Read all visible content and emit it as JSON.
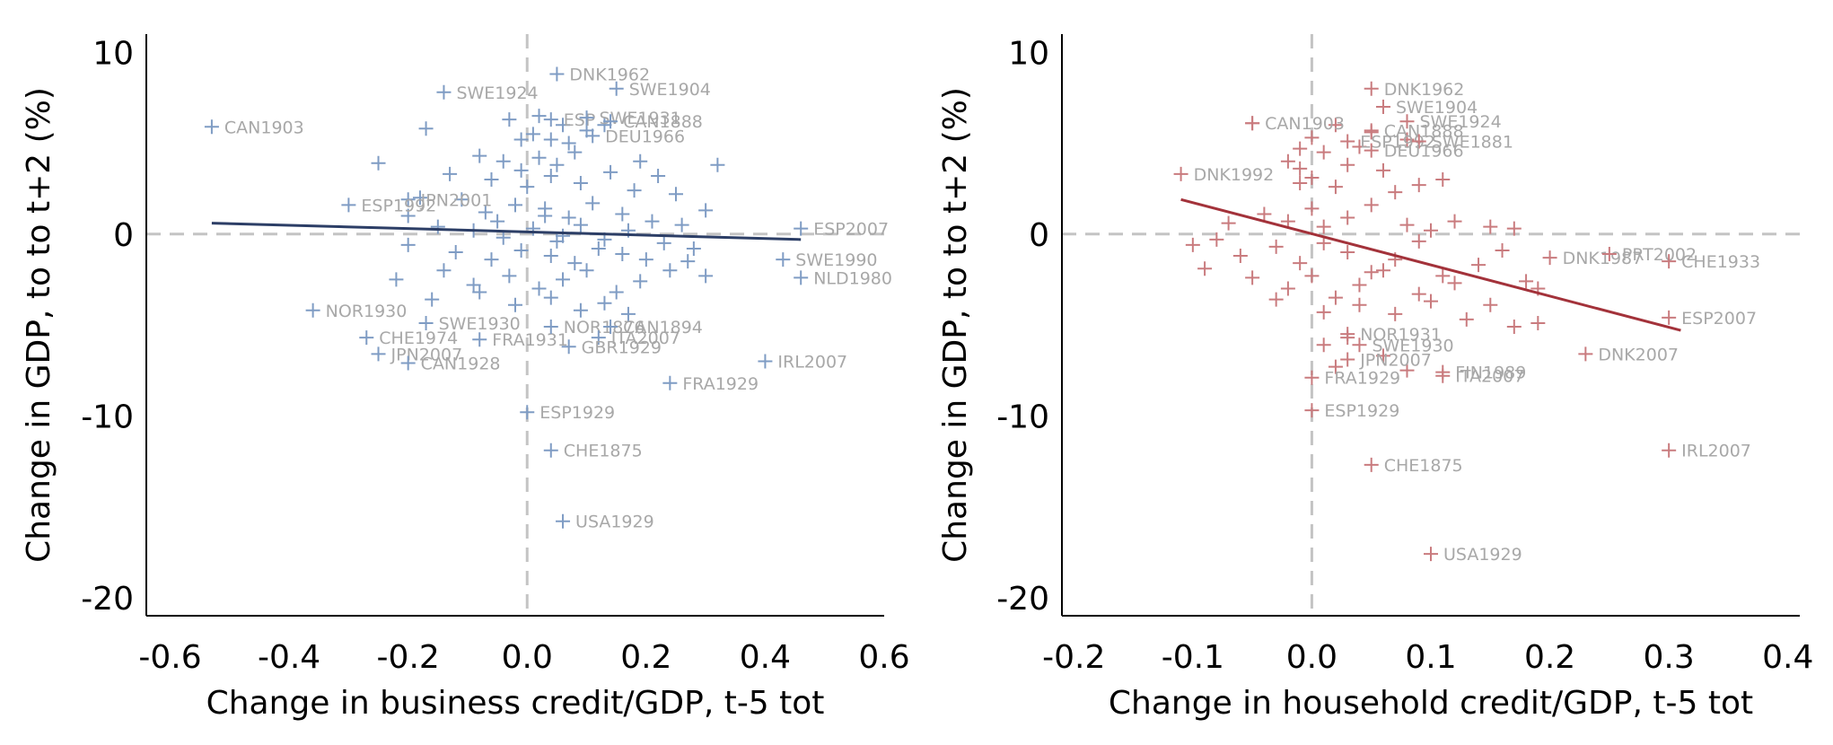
{
  "chart_data": [
    {
      "type": "scatter",
      "xlabel": "Change in business credit/GDP,  t-5 tot",
      "ylabel": "Change in GDP, to to t+2 (%)",
      "xlim": [
        -0.64,
        0.6
      ],
      "ylim": [
        -21,
        11
      ],
      "xticks": [
        "-0.6",
        "-0.4",
        "-0.2",
        "0.0",
        "0.2",
        "0.4",
        "0.6"
      ],
      "xtick_values": [
        -0.6,
        -0.4,
        -0.2,
        0.0,
        0.2,
        0.4,
        0.6
      ],
      "yticks": [
        "10",
        "0",
        "-10",
        "-20"
      ],
      "ytick_values": [
        10,
        0,
        -10,
        -20
      ],
      "ref_x": 0,
      "ref_y": 0,
      "marker_color": "#7f9cc4",
      "line_color": "#2c3e66",
      "fit_line": {
        "x": [
          -0.53,
          0.46
        ],
        "y": [
          0.6,
          -0.3
        ]
      },
      "points": [
        [
          -0.17,
          5.8
        ],
        [
          -0.03,
          6.3
        ],
        [
          0.02,
          6.5
        ],
        [
          0.06,
          6.0
        ],
        [
          0.1,
          5.7
        ],
        [
          0.13,
          6.0
        ],
        [
          -0.01,
          5.2
        ],
        [
          0.01,
          5.5
        ],
        [
          0.04,
          5.2
        ],
        [
          0.07,
          5.0
        ],
        [
          -0.08,
          4.3
        ],
        [
          -0.04,
          4.0
        ],
        [
          -0.01,
          3.5
        ],
        [
          0.02,
          4.2
        ],
        [
          0.05,
          3.8
        ],
        [
          0.08,
          4.5
        ],
        [
          -0.13,
          3.3
        ],
        [
          -0.06,
          3.0
        ],
        [
          0.0,
          2.6
        ],
        [
          0.04,
          3.2
        ],
        [
          0.09,
          2.8
        ],
        [
          0.14,
          3.4
        ],
        [
          0.18,
          2.4
        ],
        [
          0.22,
          3.2
        ],
        [
          0.25,
          2.2
        ],
        [
          -0.18,
          2.0
        ],
        [
          -0.11,
          1.9
        ],
        [
          -0.07,
          1.2
        ],
        [
          -0.02,
          1.6
        ],
        [
          0.03,
          1.4
        ],
        [
          0.07,
          0.9
        ],
        [
          0.11,
          1.7
        ],
        [
          0.16,
          1.1
        ],
        [
          0.21,
          0.7
        ],
        [
          0.26,
          0.5
        ],
        [
          0.3,
          1.3
        ],
        [
          -0.15,
          0.4
        ],
        [
          -0.09,
          0.2
        ],
        [
          -0.04,
          -0.2
        ],
        [
          0.01,
          0.3
        ],
        [
          0.05,
          -0.4
        ],
        [
          0.09,
          0.5
        ],
        [
          0.13,
          -0.3
        ],
        [
          0.17,
          0.2
        ],
        [
          0.23,
          -0.5
        ],
        [
          0.28,
          -0.8
        ],
        [
          -0.2,
          -0.6
        ],
        [
          -0.12,
          -1.0
        ],
        [
          -0.06,
          -1.4
        ],
        [
          -0.01,
          -0.9
        ],
        [
          0.04,
          -1.2
        ],
        [
          0.08,
          -1.6
        ],
        [
          0.12,
          -0.8
        ],
        [
          0.16,
          -1.1
        ],
        [
          0.2,
          -1.4
        ],
        [
          0.27,
          -1.5
        ],
        [
          -0.22,
          -2.5
        ],
        [
          -0.14,
          -2.0
        ],
        [
          -0.09,
          -2.8
        ],
        [
          -0.03,
          -2.3
        ],
        [
          0.02,
          -3.0
        ],
        [
          0.06,
          -2.5
        ],
        [
          0.1,
          -2.0
        ],
        [
          0.15,
          -3.2
        ],
        [
          0.19,
          -2.6
        ],
        [
          0.24,
          -2.0
        ],
        [
          -0.16,
          -3.6
        ],
        [
          -0.08,
          -3.2
        ],
        [
          -0.02,
          -3.9
        ],
        [
          0.04,
          -3.5
        ],
        [
          0.09,
          -4.2
        ],
        [
          0.13,
          -3.8
        ],
        [
          0.17,
          -4.4
        ],
        [
          0.3,
          -2.3
        ],
        [
          -0.25,
          3.9
        ],
        [
          -0.2,
          1.0
        ],
        [
          0.32,
          3.8
        ],
        [
          0.03,
          1.0
        ],
        [
          0.06,
          -0.1
        ],
        [
          -0.05,
          0.7
        ],
        [
          0.19,
          4.0
        ]
      ],
      "labeled_points": [
        {
          "x": -0.53,
          "y": 5.9,
          "label": "CAN1903"
        },
        {
          "x": -0.14,
          "y": 7.8,
          "label": "SWE1924"
        },
        {
          "x": 0.05,
          "y": 8.8,
          "label": "DNK1962"
        },
        {
          "x": 0.15,
          "y": 8.0,
          "label": "SWE1904"
        },
        {
          "x": 0.04,
          "y": 6.3,
          "label": "ESP"
        },
        {
          "x": 0.1,
          "y": 6.4,
          "label": "SWE1931"
        },
        {
          "x": 0.14,
          "y": 6.2,
          "label": "CAN1888"
        },
        {
          "x": 0.11,
          "y": 5.4,
          "label": "DEU1966"
        },
        {
          "x": -0.2,
          "y": 1.9,
          "label": "JPN2001"
        },
        {
          "x": -0.3,
          "y": 1.6,
          "label": "ESP1992"
        },
        {
          "x": 0.46,
          "y": 0.3,
          "label": "ESP2007"
        },
        {
          "x": 0.43,
          "y": -1.4,
          "label": "SWE1990"
        },
        {
          "x": 0.46,
          "y": -2.4,
          "label": "NLD1980"
        },
        {
          "x": -0.36,
          "y": -4.2,
          "label": "NOR1930"
        },
        {
          "x": -0.17,
          "y": -4.9,
          "label": "SWE1930"
        },
        {
          "x": -0.27,
          "y": -5.7,
          "label": "CHE1974"
        },
        {
          "x": -0.08,
          "y": -5.8,
          "label": "FRA1931"
        },
        {
          "x": -0.25,
          "y": -6.6,
          "label": "JPN2007"
        },
        {
          "x": -0.2,
          "y": -7.1,
          "label": "CAN1928"
        },
        {
          "x": 0.04,
          "y": -5.1,
          "label": "NOR1876"
        },
        {
          "x": 0.14,
          "y": -5.1,
          "label": "CAN1894"
        },
        {
          "x": 0.12,
          "y": -5.7,
          "label": "ITA2007"
        },
        {
          "x": 0.07,
          "y": -6.2,
          "label": "GBR1929"
        },
        {
          "x": 0.4,
          "y": -7.0,
          "label": "IRL2007"
        },
        {
          "x": 0.24,
          "y": -8.2,
          "label": "FRA1929"
        },
        {
          "x": 0.0,
          "y": -9.8,
          "label": "ESP1929"
        },
        {
          "x": 0.04,
          "y": -11.9,
          "label": "CHE1875"
        },
        {
          "x": 0.06,
          "y": -15.8,
          "label": "USA1929"
        }
      ]
    },
    {
      "type": "scatter",
      "xlabel": "Change in household credit/GDP,  t-5 tot",
      "ylabel": "Change in GDP, to to t+2 (%)",
      "xlim": [
        -0.21,
        0.41
      ],
      "ylim": [
        -21,
        11
      ],
      "xticks": [
        "-0.2",
        "-0.1",
        "0.0",
        "0.1",
        "0.2",
        "0.3",
        "0.4"
      ],
      "xtick_values": [
        -0.2,
        -0.1,
        0.0,
        0.1,
        0.2,
        0.3,
        0.4
      ],
      "yticks": [
        "10",
        "0",
        "-10",
        "-20"
      ],
      "ytick_values": [
        10,
        0,
        -10,
        -20
      ],
      "ref_x": 0,
      "ref_y": 0,
      "marker_color": "#c97b7e",
      "line_color": "#a3323a",
      "fit_line": {
        "x": [
          -0.11,
          0.31
        ],
        "y": [
          1.9,
          -5.3
        ]
      },
      "points": [
        [
          -0.05,
          6.1
        ],
        [
          0.0,
          5.3
        ],
        [
          0.02,
          6.0
        ],
        [
          0.05,
          5.6
        ],
        [
          0.08,
          5.2
        ],
        [
          -0.01,
          4.7
        ],
        [
          0.01,
          4.5
        ],
        [
          0.03,
          3.8
        ],
        [
          0.06,
          3.5
        ],
        [
          0.11,
          3.0
        ],
        [
          -0.01,
          3.6
        ],
        [
          0.0,
          3.1
        ],
        [
          0.02,
          2.6
        ],
        [
          0.07,
          2.3
        ],
        [
          0.09,
          2.7
        ],
        [
          -0.07,
          0.6
        ],
        [
          -0.04,
          1.1
        ],
        [
          -0.02,
          0.7
        ],
        [
          0.0,
          1.4
        ],
        [
          0.01,
          0.4
        ],
        [
          0.03,
          0.9
        ],
        [
          0.05,
          1.6
        ],
        [
          0.08,
          0.5
        ],
        [
          0.1,
          0.2
        ],
        [
          0.12,
          0.7
        ],
        [
          0.15,
          0.4
        ],
        [
          0.17,
          0.3
        ],
        [
          -0.08,
          -0.3
        ],
        [
          -0.06,
          -1.2
        ],
        [
          -0.03,
          -0.7
        ],
        [
          -0.01,
          -1.6
        ],
        [
          0.01,
          -0.5
        ],
        [
          0.03,
          -1.0
        ],
        [
          0.05,
          -2.1
        ],
        [
          0.07,
          -1.4
        ],
        [
          0.09,
          -0.4
        ],
        [
          0.11,
          -2.3
        ],
        [
          0.14,
          -1.7
        ],
        [
          0.16,
          -0.9
        ],
        [
          0.18,
          -2.6
        ],
        [
          -0.09,
          -1.9
        ],
        [
          -0.05,
          -2.4
        ],
        [
          -0.02,
          -3.0
        ],
        [
          0.0,
          -2.3
        ],
        [
          0.02,
          -3.5
        ],
        [
          0.04,
          -2.8
        ],
        [
          0.06,
          -2.0
        ],
        [
          0.09,
          -3.3
        ],
        [
          0.12,
          -2.7
        ],
        [
          0.15,
          -3.9
        ],
        [
          0.19,
          -3.0
        ],
        [
          -0.03,
          -3.6
        ],
        [
          0.01,
          -4.3
        ],
        [
          0.04,
          -3.9
        ],
        [
          0.07,
          -4.4
        ],
        [
          0.1,
          -3.7
        ],
        [
          0.13,
          -4.7
        ],
        [
          0.17,
          -5.1
        ],
        [
          0.01,
          -6.1
        ],
        [
          0.03,
          -5.7
        ],
        [
          0.06,
          -6.7
        ],
        [
          0.02,
          -7.3
        ],
        [
          0.08,
          -7.5
        ],
        [
          -0.02,
          4.0
        ],
        [
          -0.01,
          2.8
        ],
        [
          0.04,
          4.8
        ],
        [
          -0.1,
          -0.6
        ],
        [
          0.19,
          -4.9
        ]
      ],
      "labeled_points": [
        {
          "x": 0.05,
          "y": 8.0,
          "label": "DNK1962"
        },
        {
          "x": 0.06,
          "y": 7.0,
          "label": "SWE1904"
        },
        {
          "x": -0.05,
          "y": 6.1,
          "label": "CAN1903"
        },
        {
          "x": 0.08,
          "y": 6.2,
          "label": "SWE1924"
        },
        {
          "x": 0.05,
          "y": 5.7,
          "label": "CAN1888"
        },
        {
          "x": 0.03,
          "y": 5.1,
          "label": "ESP1992"
        },
        {
          "x": 0.09,
          "y": 5.1,
          "label": "SWE1881"
        },
        {
          "x": 0.05,
          "y": 4.6,
          "label": "DEU1966"
        },
        {
          "x": -0.11,
          "y": 3.3,
          "label": "DNK1992"
        },
        {
          "x": 0.2,
          "y": -1.3,
          "label": "DNK1987"
        },
        {
          "x": 0.25,
          "y": -1.1,
          "label": "PRT2002"
        },
        {
          "x": 0.3,
          "y": -1.5,
          "label": "CHE1933"
        },
        {
          "x": 0.3,
          "y": -4.6,
          "label": "ESP2007"
        },
        {
          "x": 0.23,
          "y": -6.6,
          "label": "DNK2007"
        },
        {
          "x": 0.03,
          "y": -5.5,
          "label": "NOR1931"
        },
        {
          "x": 0.04,
          "y": -6.1,
          "label": "SWE1930"
        },
        {
          "x": 0.03,
          "y": -6.9,
          "label": "JPN2007"
        },
        {
          "x": 0.0,
          "y": -7.9,
          "label": "FRA1929"
        },
        {
          "x": 0.11,
          "y": -7.6,
          "label": "FIN1989"
        },
        {
          "x": 0.11,
          "y": -7.8,
          "label": "ITA2007"
        },
        {
          "x": 0.3,
          "y": -11.9,
          "label": "IRL2007"
        },
        {
          "x": 0.0,
          "y": -9.7,
          "label": "ESP1929"
        },
        {
          "x": 0.05,
          "y": -12.7,
          "label": "CHE1875"
        },
        {
          "x": 0.1,
          "y": -17.6,
          "label": "USA1929"
        }
      ]
    }
  ]
}
